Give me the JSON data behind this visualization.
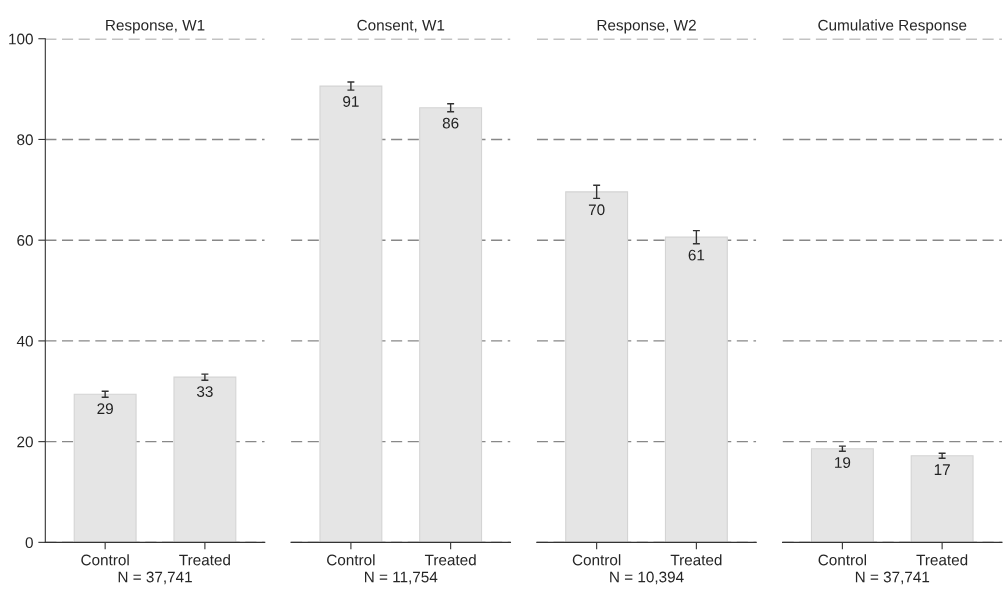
{
  "chart_data": [
    {
      "type": "bar",
      "title": "Response, W1",
      "xlabel": "N = 37,741",
      "categories": [
        "Control",
        "Treated"
      ],
      "values": [
        29.4,
        32.8
      ],
      "errors": [
        0.6,
        0.6
      ],
      "value_labels": [
        "29",
        "33"
      ],
      "color": "#e5e5e5",
      "ylim": [
        0,
        100
      ],
      "yticks": [
        0,
        20,
        40,
        60,
        80,
        100
      ],
      "grid": "y",
      "line_style": "dashed"
    },
    {
      "type": "bar",
      "title": "Consent, W1",
      "xlabel": "N = 11,754",
      "categories": [
        "Control",
        "Treated"
      ],
      "values": [
        90.6,
        86.3
      ],
      "errors": [
        0.8,
        0.8
      ],
      "value_labels": [
        "91",
        "86"
      ],
      "color": "#e5e5e5",
      "ylim": [
        0,
        100
      ],
      "yticks": [
        0,
        20,
        40,
        60,
        80,
        100
      ],
      "grid": "y",
      "line_style": "dashed",
      "tick_labels": "x"
    },
    {
      "type": "bar",
      "title": "Response, W2",
      "xlabel": "N = 10,394",
      "categories": [
        "Control",
        "Treated"
      ],
      "values": [
        69.6,
        60.6
      ],
      "errors": [
        1.3,
        1.3
      ],
      "value_labels": [
        "70",
        "61"
      ],
      "color": "#e5e5e5",
      "ylim": [
        0,
        100
      ],
      "yticks": [
        0,
        20,
        40,
        60,
        80,
        100
      ],
      "grid": "y",
      "line_style": "dashed",
      "tick_labels": "x"
    },
    {
      "type": "bar",
      "title": "Cumulative Response",
      "xlabel": "N = 37,741",
      "categories": [
        "Control",
        "Treated"
      ],
      "values": [
        18.6,
        17.2
      ],
      "errors": [
        0.5,
        0.5
      ],
      "value_labels": [
        "19",
        "17"
      ],
      "color": "#e5e5e5",
      "ylim": [
        0,
        100
      ],
      "yticks": [
        0,
        20,
        40,
        60,
        80,
        100
      ],
      "grid": "y",
      "line_style": "dashed",
      "tick_labels": "x"
    }
  ]
}
